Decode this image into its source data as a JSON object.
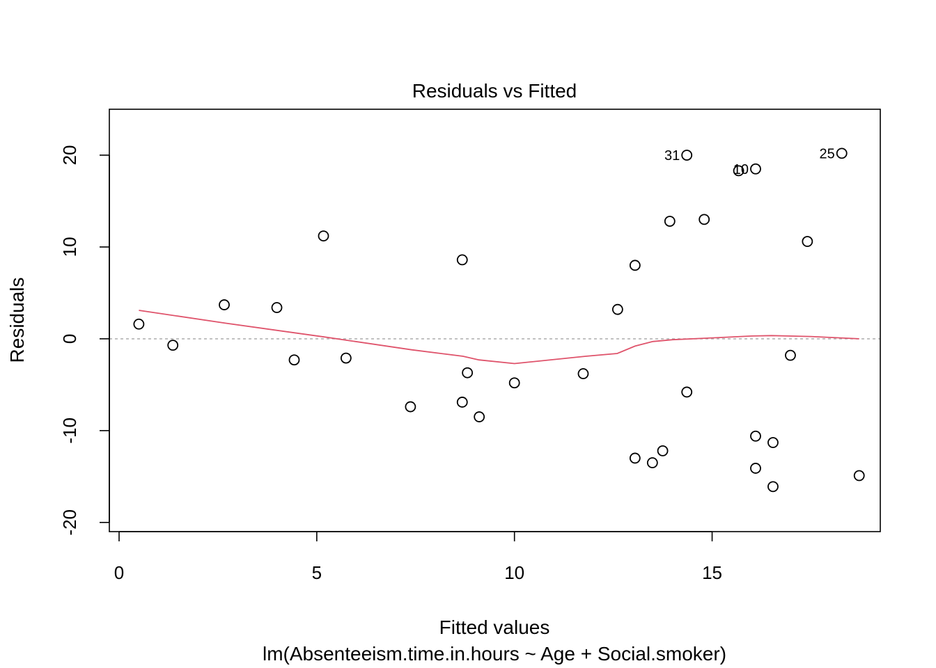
{
  "chart_data": {
    "type": "scatter",
    "title": "Residuals vs Fitted",
    "xlabel": "Fitted values",
    "subtitle": "lm(Absenteeism.time.in.hours ~ Age + Social.smoker)",
    "ylabel": "Residuals",
    "xlim": [
      0,
      19.5
    ],
    "ylim": [
      -21,
      25
    ],
    "x_ticks": [
      0,
      5,
      10,
      15
    ],
    "y_ticks": [
      -20,
      -10,
      0,
      10,
      20
    ],
    "x_tick_labels": [
      "0",
      "5",
      "10",
      "15"
    ],
    "y_tick_labels": [
      "-20",
      "-10",
      "0",
      "10",
      "20"
    ],
    "reference_line_y": 0,
    "points": [
      {
        "x": 0.5,
        "y": 1.6
      },
      {
        "x": 1.36,
        "y": -0.7
      },
      {
        "x": 2.66,
        "y": 3.7
      },
      {
        "x": 3.99,
        "y": 3.4
      },
      {
        "x": 4.43,
        "y": -2.3
      },
      {
        "x": 5.17,
        "y": 11.2
      },
      {
        "x": 5.74,
        "y": -2.1
      },
      {
        "x": 7.37,
        "y": -7.4
      },
      {
        "x": 8.68,
        "y": 8.6
      },
      {
        "x": 8.68,
        "y": -6.9
      },
      {
        "x": 8.81,
        "y": -3.7
      },
      {
        "x": 9.11,
        "y": -8.5
      },
      {
        "x": 10.0,
        "y": -4.8
      },
      {
        "x": 11.74,
        "y": -3.8
      },
      {
        "x": 12.61,
        "y": 3.2
      },
      {
        "x": 13.05,
        "y": 8.0
      },
      {
        "x": 13.05,
        "y": -13.0
      },
      {
        "x": 13.49,
        "y": -13.5
      },
      {
        "x": 13.75,
        "y": -12.2
      },
      {
        "x": 13.93,
        "y": 12.8
      },
      {
        "x": 14.36,
        "y": 20.0,
        "label": "31"
      },
      {
        "x": 14.36,
        "y": -5.8
      },
      {
        "x": 14.8,
        "y": 13.0
      },
      {
        "x": 15.67,
        "y": 18.3
      },
      {
        "x": 16.1,
        "y": 18.5,
        "label": "10"
      },
      {
        "x": 16.1,
        "y": -10.6
      },
      {
        "x": 16.1,
        "y": -14.1
      },
      {
        "x": 16.54,
        "y": -11.3
      },
      {
        "x": 16.54,
        "y": -16.1
      },
      {
        "x": 16.98,
        "y": -1.8
      },
      {
        "x": 17.41,
        "y": 10.6
      },
      {
        "x": 18.28,
        "y": 20.2,
        "label": "25"
      },
      {
        "x": 18.72,
        "y": -14.9
      }
    ],
    "smooth_line": {
      "x": [
        0.5,
        2.7,
        5.2,
        7.4,
        8.7,
        9.1,
        10.0,
        11.8,
        12.6,
        13.05,
        13.5,
        14.0,
        15.0,
        16.0,
        16.5,
        17.5,
        18.72
      ],
      "y": [
        3.1,
        1.7,
        0.2,
        -1.2,
        -1.9,
        -2.3,
        -2.7,
        -1.9,
        -1.6,
        -0.8,
        -0.3,
        -0.1,
        0.1,
        0.3,
        0.35,
        0.25,
        0.0
      ]
    }
  }
}
